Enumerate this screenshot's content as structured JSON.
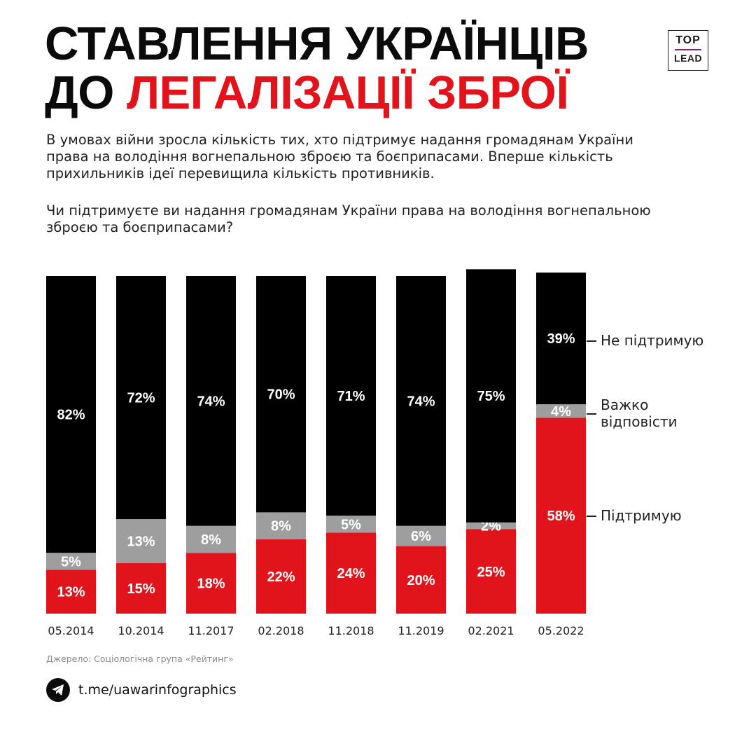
{
  "header": {
    "title_line1": "СТАВЛЕННЯ УКРАЇНЦІВ",
    "title_line2_prefix": "ДО ",
    "title_line2_accent": "ЛЕГАЛІЗАЦІЇ ЗБРОЇ",
    "logo_top": "TOP",
    "logo_bottom": "LEAD"
  },
  "intro": "В умовах війни зросла кількість тих, хто підтримує надання громадянам України права на володіння вогнепальною зброєю та боєприпасами. Вперше кількість прихильників ідеї перевищила кількість противників.",
  "question": "Чи підтримуєте ви надання громадянам України права на володіння вогнепальною зброєю та боєприпасами?",
  "legend": {
    "oppose": "Не підтримую",
    "hard": "Важко відповісти",
    "support": "Підтримую"
  },
  "colors": {
    "support": "#e1141c",
    "hard": "#9e9e9e",
    "oppose": "#000000",
    "accent": "#e1141c"
  },
  "chart_data": {
    "type": "bar",
    "stacked": true,
    "percent_stacked": true,
    "categories": [
      "05.2014",
      "10.2014",
      "11.2017",
      "02.2018",
      "11.2018",
      "11.2019",
      "02.2021",
      "05.2022"
    ],
    "series": [
      {
        "name": "Підтримую",
        "color": "#e1141c",
        "values": [
          13,
          15,
          18,
          22,
          24,
          20,
          25,
          58
        ]
      },
      {
        "name": "Важко відповісти",
        "color": "#9e9e9e",
        "values": [
          5,
          13,
          8,
          8,
          5,
          6,
          2,
          4
        ]
      },
      {
        "name": "Не підтримую",
        "color": "#000000",
        "values": [
          82,
          72,
          74,
          70,
          71,
          74,
          75,
          39
        ]
      }
    ],
    "value_suffix": "%",
    "legend_position": "right"
  },
  "footer": {
    "source": "Джерело: Соціологічна група «Рейтинг»",
    "telegram": "t.me/uawarinfographics",
    "telegram_icon": "telegram-icon"
  }
}
